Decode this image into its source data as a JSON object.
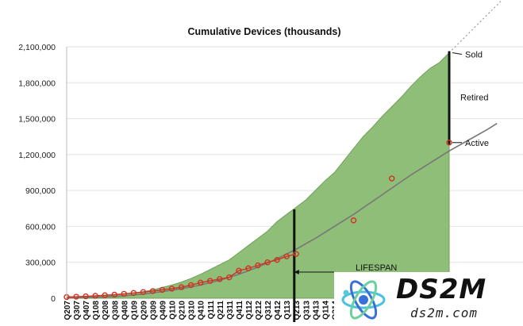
{
  "chart_data": {
    "type": "area",
    "title": "Cumulative Devices (thousands)",
    "xlabel": "",
    "ylabel": "",
    "ylim": [
      0,
      2100000
    ],
    "y_ticks": [
      0,
      300000,
      600000,
      900000,
      1200000,
      1500000,
      1800000,
      2100000
    ],
    "y_tick_labels": [
      "0",
      "300,000",
      "600,000",
      "900,000",
      "1,200,000",
      "1,500,000",
      "1,800,000",
      "2,100,000"
    ],
    "categories": [
      "Q207",
      "Q307",
      "Q407",
      "Q108",
      "Q208",
      "Q308",
      "Q408",
      "Q109",
      "Q209",
      "Q309",
      "Q409",
      "Q110",
      "Q210",
      "Q310",
      "Q410",
      "Q111",
      "Q211",
      "Q311",
      "Q411",
      "Q112",
      "Q212",
      "Q312",
      "Q412",
      "Q113",
      "Q213",
      "Q313",
      "Q413",
      "Q114",
      "Q214"
    ],
    "sold_area": {
      "x": [
        0,
        1,
        2,
        3,
        4,
        5,
        6,
        7,
        8,
        9,
        10,
        11,
        12,
        13,
        14,
        15,
        16,
        17,
        18,
        19,
        20,
        21,
        22,
        23,
        24,
        25,
        26,
        27,
        28,
        29,
        30,
        31,
        32,
        33,
        34,
        35,
        36,
        37,
        38,
        39,
        40
      ],
      "values": [
        3000,
        5000,
        10000,
        15000,
        20000,
        25000,
        35000,
        45000,
        55000,
        70000,
        90000,
        110000,
        135000,
        165000,
        200000,
        240000,
        280000,
        320000,
        380000,
        440000,
        500000,
        560000,
        640000,
        700000,
        760000,
        820000,
        900000,
        980000,
        1050000,
        1150000,
        1250000,
        1350000,
        1430000,
        1520000,
        1600000,
        1680000,
        1770000,
        1850000,
        1920000,
        1970000,
        2050000
      ]
    },
    "active_curve": {
      "x": [
        0,
        2,
        4,
        6,
        8,
        10,
        12,
        14,
        16,
        18,
        20,
        22,
        24,
        26,
        28,
        30,
        32,
        34,
        36,
        38,
        40,
        42,
        44,
        45
      ],
      "values": [
        2000,
        5000,
        10000,
        20000,
        35000,
        55000,
        80000,
        110000,
        150000,
        200000,
        260000,
        330000,
        410000,
        500000,
        600000,
        700000,
        810000,
        920000,
        1030000,
        1130000,
        1230000,
        1320000,
        1410000,
        1460000
      ]
    },
    "observed_points": {
      "x": [
        0,
        1,
        2,
        3,
        4,
        5,
        6,
        7,
        8,
        9,
        10,
        11,
        12,
        13,
        14,
        15,
        16,
        17,
        18,
        19,
        20,
        21,
        22,
        23,
        24,
        30,
        34,
        40
      ],
      "values": [
        10000,
        13000,
        16000,
        20000,
        25000,
        30000,
        37000,
        44000,
        52000,
        60000,
        70000,
        80000,
        92000,
        110000,
        130000,
        145000,
        160000,
        175000,
        230000,
        250000,
        275000,
        300000,
        320000,
        350000,
        370000,
        650000,
        1000000,
        1300000
      ]
    },
    "annotations": {
      "sold": "Sold",
      "retired": "Retired",
      "active": "Active",
      "lifespan": "LIFESPAN"
    },
    "colors": {
      "area": "#8fbe78",
      "area_edge": "#6f9f58",
      "curve": "#777777",
      "points": "#cc3322",
      "marker": "#111111"
    }
  },
  "watermark": {
    "big": "DS2M",
    "small": "ds2m.com"
  }
}
